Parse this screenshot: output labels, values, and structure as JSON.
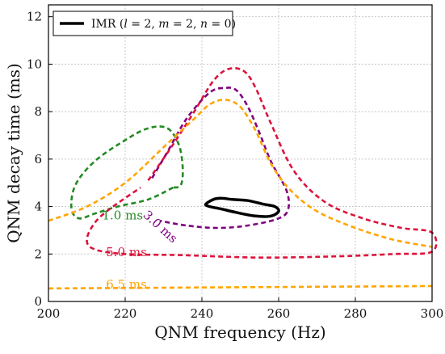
{
  "chart_data": {
    "type": "line",
    "xlabel": "QNM frequency (Hz)",
    "ylabel": "QNM decay time (ms)",
    "xlim": [
      200,
      300
    ],
    "ylim": [
      0,
      12.5
    ],
    "xticks": [
      "200",
      "220",
      "240",
      "260",
      "280",
      "300"
    ],
    "yticks": [
      "0",
      "2",
      "4",
      "6",
      "8",
      "10",
      "12"
    ],
    "grid": true,
    "legend_position": "top-left",
    "legend": {
      "label": "IMR (l = 2, m = 2, n = 0)",
      "parts": {
        "prefix": "IMR (",
        "l_sym": "l",
        "eq1": " = 2, ",
        "m_sym": "m",
        "eq2": " = 2, ",
        "n_sym": "n",
        "eq3": " = 0)"
      }
    },
    "series": [
      {
        "name": "IMR (l = 2, m = 2, n = 0)",
        "style": "solid",
        "color": "#000000",
        "closed": true,
        "points": [
          [
            241,
            4.1
          ],
          [
            243,
            4.3
          ],
          [
            245,
            4.35
          ],
          [
            248,
            4.3
          ],
          [
            252,
            4.25
          ],
          [
            256,
            4.1
          ],
          [
            259,
            4.0
          ],
          [
            260,
            3.8
          ],
          [
            258,
            3.6
          ],
          [
            254,
            3.6
          ],
          [
            249,
            3.75
          ],
          [
            245,
            3.9
          ],
          [
            242,
            4.0
          ]
        ]
      },
      {
        "label": "1.0 ms",
        "style": "dashed",
        "color": "#228b22",
        "points": [
          [
            232.5,
            4.8
          ],
          [
            226,
            4.3
          ],
          [
            218,
            4.0
          ],
          [
            212,
            3.7
          ],
          [
            208,
            3.5
          ],
          [
            206,
            3.9
          ],
          [
            207,
            4.9
          ],
          [
            212,
            5.9
          ],
          [
            220,
            6.8
          ],
          [
            226,
            7.3
          ],
          [
            231,
            7.3
          ],
          [
            234,
            6.6
          ],
          [
            235,
            5.6
          ],
          [
            234.5,
            4.9
          ],
          [
            232.5,
            4.8
          ]
        ]
      },
      {
        "label": "3.0 ms",
        "style": "dashed",
        "color": "#800080",
        "points": [
          [
            227,
            5.2
          ],
          [
            231,
            6.3
          ],
          [
            236,
            7.7
          ],
          [
            242,
            8.8
          ],
          [
            246,
            9.0
          ],
          [
            249,
            8.9
          ],
          [
            252,
            8.2
          ],
          [
            255,
            7.1
          ],
          [
            258,
            5.9
          ],
          [
            262,
            4.7
          ],
          [
            262.5,
            3.9
          ],
          [
            260,
            3.5
          ],
          [
            252,
            3.2
          ],
          [
            244,
            3.1
          ],
          [
            236,
            3.2
          ],
          [
            229,
            3.4
          ]
        ]
      },
      {
        "label": "5.0 ms",
        "style": "dashed",
        "color": "#dc143c",
        "points": [
          [
            226,
            5.1
          ],
          [
            232,
            6.5
          ],
          [
            238,
            8.0
          ],
          [
            243,
            9.3
          ],
          [
            247,
            9.8
          ],
          [
            251,
            9.7
          ],
          [
            254,
            9.0
          ],
          [
            258,
            7.5
          ],
          [
            264,
            5.5
          ],
          [
            272,
            4.2
          ],
          [
            282,
            3.5
          ],
          [
            292,
            3.1
          ],
          [
            300,
            2.9
          ],
          [
            300,
            2.1
          ],
          [
            290,
            2.0
          ],
          [
            275,
            1.9
          ],
          [
            255,
            1.85
          ],
          [
            235,
            1.95
          ],
          [
            220,
            2.0
          ],
          [
            212,
            2.2
          ],
          [
            210,
            2.6
          ],
          [
            212,
            3.3
          ],
          [
            216,
            3.9
          ],
          [
            224,
            4.8
          ]
        ]
      },
      {
        "label": "6.5 ms",
        "style": "dashed",
        "color": "#ffa500",
        "points": [
          [
            200,
            3.4
          ],
          [
            210,
            4.0
          ],
          [
            220,
            5.0
          ],
          [
            230,
            6.5
          ],
          [
            238,
            7.7
          ],
          [
            242,
            8.3
          ],
          [
            246,
            8.5
          ],
          [
            250,
            8.2
          ],
          [
            254,
            7.2
          ],
          [
            258,
            5.8
          ],
          [
            263,
            4.7
          ],
          [
            270,
            3.8
          ],
          [
            280,
            3.1
          ],
          [
            290,
            2.6
          ],
          [
            300,
            2.3
          ]
        ]
      },
      {
        "label": "6.5 ms",
        "style": "dashed",
        "color": "#ffa500",
        "points": [
          [
            200,
            0.55
          ],
          [
            250,
            0.6
          ],
          [
            300,
            0.65
          ]
        ]
      }
    ],
    "annotations": [
      {
        "text": "1.0 ms",
        "color": "#228b22",
        "at": [
          214,
          3.45
        ],
        "rotate": 0
      },
      {
        "text": "3.0 ms",
        "color": "#800080",
        "at": [
          224.5,
          3.6
        ],
        "rotate": 42
      },
      {
        "text": "5.0 ms",
        "color": "#dc143c",
        "at": [
          215,
          1.9
        ],
        "rotate": 0
      },
      {
        "text": "6.5 ms",
        "color": "#ffa500",
        "at": [
          215,
          0.55
        ],
        "rotate": 0
      }
    ]
  }
}
